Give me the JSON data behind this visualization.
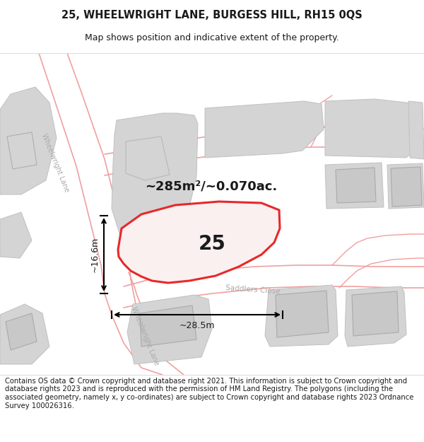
{
  "title": "25, WHEELWRIGHT LANE, BURGESS HILL, RH15 0QS",
  "subtitle": "Map shows position and indicative extent of the property.",
  "footer": "Contains OS data © Crown copyright and database right 2021. This information is subject to Crown copyright and database rights 2023 and is reproduced with the permission of HM Land Registry. The polygons (including the associated geometry, namely x, y co-ordinates) are subject to Crown copyright and database rights 2023 Ordnance Survey 100026316.",
  "area_label": "~285m²/~0.070ac.",
  "house_number": "25",
  "dim_width": "~28.5m",
  "dim_height": "~16.6m",
  "street_label_upper": "Wheelwright Lane",
  "street_label_lower": "Wheelwright Lane",
  "street_label_road": "Saddlers Close",
  "bg_color": "#ffffff",
  "outline_color": "#e8282a",
  "road_line_color": "#f0a0a0",
  "building_color": "#d4d4d4",
  "building_edge": "#c0c0c0",
  "road_bg_color": "#f0f0f0",
  "title_fontsize": 10.5,
  "subtitle_fontsize": 9,
  "footer_fontsize": 7.2,
  "label_fontsize": 7,
  "area_fontsize": 13,
  "dim_fontsize": 9,
  "number_fontsize": 20
}
